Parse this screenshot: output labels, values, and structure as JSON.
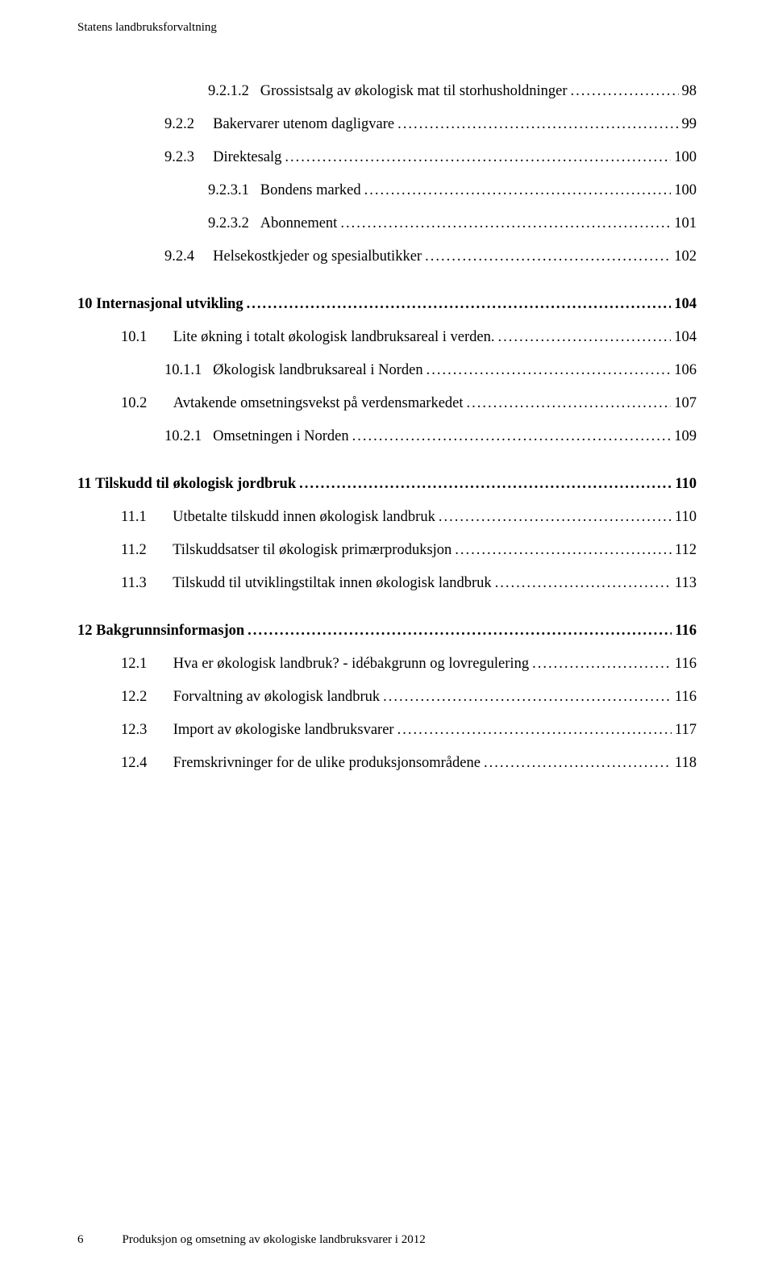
{
  "header": "Statens landbruksforvaltning",
  "toc": [
    {
      "num": "9.2.1.2",
      "gap": "   ",
      "title": "Grossistsalg av økologisk mat til storhusholdninger",
      "page": "98",
      "level": 4,
      "bold": false
    },
    {
      "num": "9.2.2",
      "gap": "     ",
      "title": "Bakervarer utenom dagligvare",
      "page": "99",
      "level": 3,
      "bold": false
    },
    {
      "num": "9.2.3",
      "gap": "     ",
      "title": "Direktesalg",
      "page": "100",
      "level": 3,
      "bold": false
    },
    {
      "num": "9.2.3.1",
      "gap": "   ",
      "title": "Bondens marked",
      "page": "100",
      "level": 4,
      "bold": false
    },
    {
      "num": "9.2.3.2",
      "gap": "   ",
      "title": "Abonnement",
      "page": "101",
      "level": 4,
      "bold": false
    },
    {
      "num": "9.2.4",
      "gap": "     ",
      "title": "Helsekostkjeder og spesialbutikker",
      "page": "102",
      "level": 3,
      "bold": false,
      "extra": true
    },
    {
      "num": "10",
      "gap": " ",
      "title": "Internasjonal utvikling",
      "page": "104",
      "level": 1,
      "bold": true
    },
    {
      "num": "10.1",
      "gap": "       ",
      "title": "Lite økning i totalt økologisk landbruksareal i verden.",
      "page": "104",
      "level": 2,
      "bold": false
    },
    {
      "num": "10.1.1",
      "gap": "   ",
      "title": "Økologisk landbruksareal i Norden",
      "page": "106",
      "level": 3,
      "bold": false
    },
    {
      "num": "10.2",
      "gap": "       ",
      "title": "Avtakende omsetningsvekst på verdensmarkedet",
      "page": "107",
      "level": 2,
      "bold": false
    },
    {
      "num": "10.2.1",
      "gap": "   ",
      "title": "Omsetningen i Norden",
      "page": "109",
      "level": 3,
      "bold": false,
      "extra": true
    },
    {
      "num": "11",
      "gap": " ",
      "title": "Tilskudd til økologisk jordbruk",
      "page": "110",
      "level": 1,
      "bold": true
    },
    {
      "num": "11.1",
      "gap": "       ",
      "title": "Utbetalte tilskudd innen økologisk landbruk",
      "page": "110",
      "level": 2,
      "bold": false
    },
    {
      "num": "11.2",
      "gap": "       ",
      "title": "Tilskuddsatser til økologisk primærproduksjon",
      "page": "112",
      "level": 2,
      "bold": false
    },
    {
      "num": "11.3",
      "gap": "       ",
      "title": "Tilskudd til utviklingstiltak innen økologisk landbruk",
      "page": "113",
      "level": 2,
      "bold": false,
      "extra": true
    },
    {
      "num": "12",
      "gap": " ",
      "title": "Bakgrunnsinformasjon",
      "page": "116",
      "level": 1,
      "bold": true
    },
    {
      "num": "12.1",
      "gap": "       ",
      "title": "Hva er økologisk landbruk? - idébakgrunn og lovregulering",
      "page": "116",
      "level": 2,
      "bold": false
    },
    {
      "num": "12.2",
      "gap": "       ",
      "title": "Forvaltning av økologisk landbruk",
      "page": "116",
      "level": 2,
      "bold": false
    },
    {
      "num": "12.3",
      "gap": "       ",
      "title": "Import av økologiske landbruksvarer",
      "page": "117",
      "level": 2,
      "bold": false
    },
    {
      "num": "12.4",
      "gap": "       ",
      "title": "Fremskrivninger for de ulike produksjonsområdene",
      "page": "118",
      "level": 2,
      "bold": false
    }
  ],
  "footer": {
    "page_number": "6",
    "text": "Produksjon og omsetning av økologiske landbruksvarer i 2012"
  }
}
